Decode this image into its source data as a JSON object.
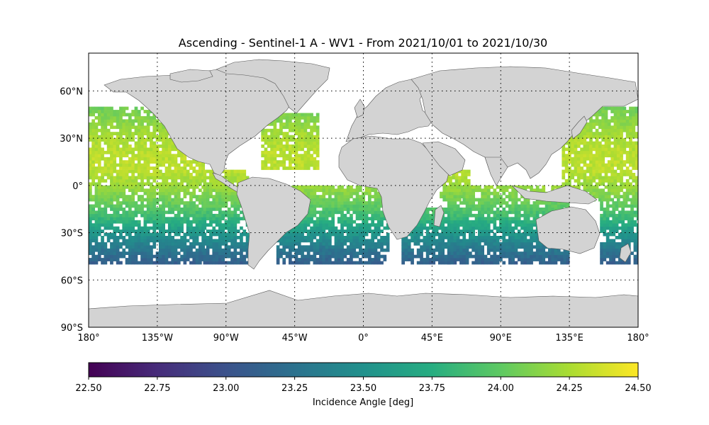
{
  "title": "Ascending - Sentinel-1 A - WV1 - From 2021/10/01 to 2021/10/30",
  "map": {
    "projection": "PlateCarree",
    "lon_range": [
      -180,
      180
    ],
    "lat_range": [
      -90,
      90
    ],
    "land_color": "#d3d3d3",
    "coast_color": "#555555",
    "grid": "dotted",
    "lon_ticks": [
      {
        "value": -180,
        "label": "180°"
      },
      {
        "value": -135,
        "label": "135°W"
      },
      {
        "value": -90,
        "label": "90°W"
      },
      {
        "value": -45,
        "label": "45°W"
      },
      {
        "value": 0,
        "label": "0°"
      },
      {
        "value": 45,
        "label": "45°E"
      },
      {
        "value": 90,
        "label": "90°E"
      },
      {
        "value": 135,
        "label": "135°E"
      },
      {
        "value": 180,
        "label": "180°"
      }
    ],
    "lat_ticks": [
      {
        "value": 60,
        "label": "60°N"
      },
      {
        "value": 30,
        "label": "30°N"
      },
      {
        "value": 0,
        "label": "0°"
      },
      {
        "value": -30,
        "label": "30°S"
      },
      {
        "value": -60,
        "label": "60°S"
      },
      {
        "value": -90,
        "label": "90°S"
      }
    ]
  },
  "chart_data": {
    "type": "heatmap",
    "title": "Ascending - Sentinel-1 A - WV1 - From 2021/10/01 to 2021/10/30",
    "variable": "Incidence Angle [deg]",
    "colormap": "viridis",
    "vmin": 22.5,
    "vmax": 24.5,
    "lat_coverage": [
      -50,
      50
    ],
    "regions": [
      {
        "lon": [
          -180,
          -105
        ],
        "lat": [
          -50,
          50
        ]
      },
      {
        "lon": [
          -105,
          -75
        ],
        "lat": [
          -50,
          10
        ]
      },
      {
        "lon": [
          -67,
          -30
        ],
        "lat": [
          10,
          45
        ]
      },
      {
        "lon": [
          -57,
          -27
        ],
        "lat": [
          -50,
          0
        ]
      },
      {
        "lon": [
          -27,
          17
        ],
        "lat": [
          -50,
          0
        ]
      },
      {
        "lon": [
          25,
          60
        ],
        "lat": [
          -50,
          -15
        ]
      },
      {
        "lon": [
          50,
          70
        ],
        "lat": [
          -10,
          10
        ]
      },
      {
        "lon": [
          55,
          135
        ],
        "lat": [
          -50,
          0
        ]
      },
      {
        "lon": [
          130,
          180
        ],
        "lat": [
          -10,
          50
        ]
      },
      {
        "lon": [
          155,
          180
        ],
        "lat": [
          -50,
          -10
        ]
      }
    ],
    "lat_value_profile": [
      {
        "lat": 50,
        "value": 24.05
      },
      {
        "lat": 40,
        "value": 24.15
      },
      {
        "lat": 30,
        "value": 24.25
      },
      {
        "lat": 20,
        "value": 24.3
      },
      {
        "lat": 10,
        "value": 24.3
      },
      {
        "lat": 0,
        "value": 24.2
      },
      {
        "lat": -10,
        "value": 24.05
      },
      {
        "lat": -20,
        "value": 23.85
      },
      {
        "lat": -30,
        "value": 23.55
      },
      {
        "lat": -40,
        "value": 23.3
      },
      {
        "lat": -50,
        "value": 23.1
      }
    ]
  },
  "colorbar": {
    "label": "Incidence Angle [deg]",
    "ticks": [
      "22.50",
      "22.75",
      "23.00",
      "23.25",
      "23.50",
      "23.75",
      "24.00",
      "24.25",
      "24.50"
    ],
    "tick_values": [
      22.5,
      22.75,
      23.0,
      23.25,
      23.5,
      23.75,
      24.0,
      24.25,
      24.5
    ]
  }
}
